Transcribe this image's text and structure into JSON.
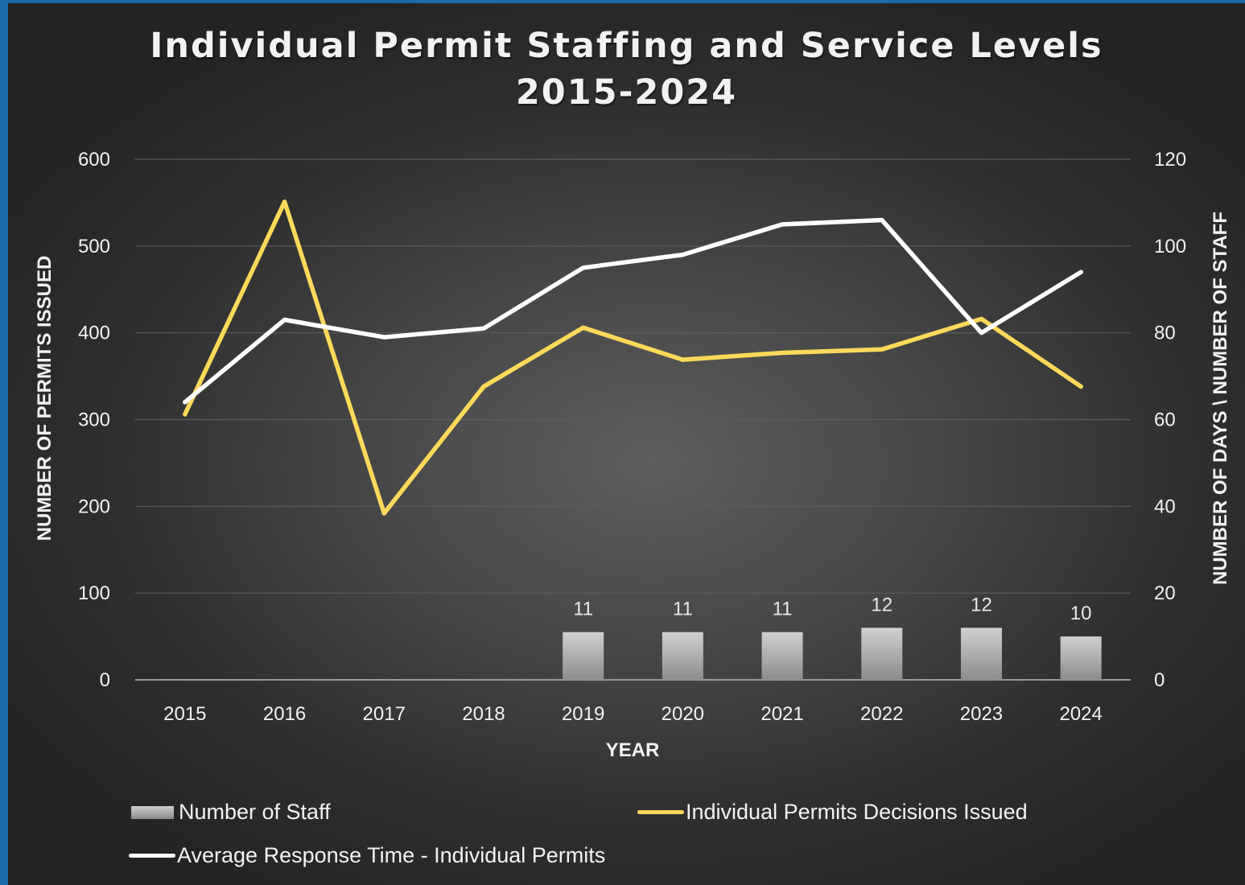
{
  "title_lines": [
    "Individual Permit Staffing and Service Levels",
    "2015-2024"
  ],
  "colors": {
    "staff_bar": "#a6a6a6",
    "permits_line": "#ffd95a",
    "response_line": "#ffffff",
    "gridline": "#5c5c5c",
    "text": "#f2f2f2"
  },
  "legend": {
    "staff": "Number of Staff",
    "permits": "Individual Permits Decisions Issued",
    "response": "Average Response Time - Individual Permits"
  },
  "chart_data": {
    "type": "bar",
    "title": "Individual Permit Staffing and Service Levels 2015-2024",
    "xlabel": "YEAR",
    "ylabel_left": "NUMBER OF PERMITS ISSUED",
    "ylabel_right": "NUMBER OF DAYS \\  NUMBER OF STAFF",
    "categories": [
      "2015",
      "2016",
      "2017",
      "2018",
      "2019",
      "2020",
      "2021",
      "2022",
      "2023",
      "2024"
    ],
    "ylim_left": [
      0,
      600
    ],
    "yticks_left": [
      0,
      100,
      200,
      300,
      400,
      500,
      600
    ],
    "ylim_right": [
      0,
      120
    ],
    "yticks_right": [
      0,
      20,
      40,
      60,
      80,
      100,
      120
    ],
    "grid": true,
    "legend_position": "bottom",
    "series": [
      {
        "name": "Number of Staff",
        "type": "bar",
        "axis": "right",
        "values": [
          null,
          null,
          null,
          null,
          11,
          11,
          11,
          12,
          12,
          10
        ],
        "data_labels": true
      },
      {
        "name": "Individual Permits Decisions Issued",
        "type": "line",
        "axis": "left",
        "values": [
          306,
          551,
          192,
          338,
          406,
          369,
          377,
          381,
          416,
          338
        ]
      },
      {
        "name": "Average Response Time - Individual Permits",
        "type": "line",
        "axis": "right",
        "values": [
          64,
          83,
          79,
          81,
          95,
          98,
          105,
          106,
          80,
          94
        ]
      }
    ]
  }
}
